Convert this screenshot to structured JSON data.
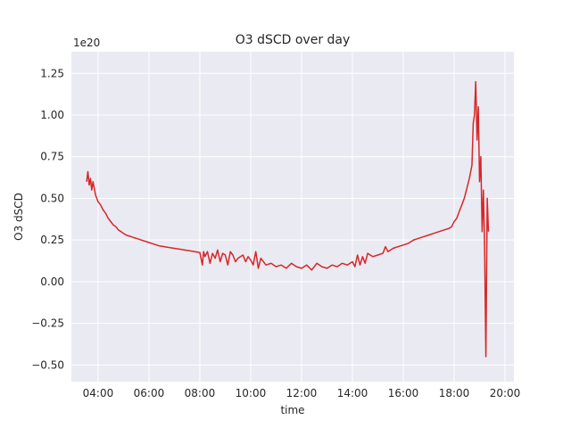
{
  "chart_data": {
    "type": "line",
    "title": "O3 dSCD over day",
    "xlabel": "time",
    "ylabel": "O3 dSCD",
    "y_offset_label": "1e20",
    "x_tick_labels": [
      "04:00",
      "06:00",
      "08:00",
      "10:00",
      "12:00",
      "14:00",
      "16:00",
      "18:00",
      "20:00"
    ],
    "x_ticks_hours": [
      4,
      6,
      8,
      10,
      12,
      14,
      16,
      18,
      20
    ],
    "y_ticks": [
      -0.5,
      -0.25,
      0.0,
      0.25,
      0.5,
      0.75,
      1.0,
      1.25
    ],
    "y_tick_labels": [
      "−0.50",
      "−0.25",
      "0.00",
      "0.25",
      "0.50",
      "0.75",
      "1.00",
      "1.25"
    ],
    "xlim_hours": [
      2.95,
      20.35
    ],
    "ylim": [
      -0.6,
      1.38
    ],
    "grid": true,
    "series": [
      {
        "color": "#d62728",
        "x_hours": [
          3.55,
          3.6,
          3.65,
          3.7,
          3.75,
          3.8,
          3.9,
          4.0,
          4.1,
          4.2,
          4.3,
          4.4,
          4.5,
          4.6,
          4.7,
          4.8,
          4.9,
          5.0,
          5.1,
          5.2,
          5.3,
          5.4,
          5.5,
          5.6,
          5.7,
          5.8,
          5.9,
          6.0,
          6.2,
          6.4,
          6.6,
          6.8,
          7.0,
          7.2,
          7.4,
          7.6,
          7.8,
          8.0,
          8.1,
          8.15,
          8.2,
          8.3,
          8.4,
          8.5,
          8.6,
          8.7,
          8.8,
          8.9,
          9.0,
          9.1,
          9.2,
          9.3,
          9.4,
          9.5,
          9.6,
          9.7,
          9.8,
          9.9,
          10.0,
          10.1,
          10.2,
          10.3,
          10.4,
          10.6,
          10.8,
          11.0,
          11.2,
          11.4,
          11.6,
          11.8,
          12.0,
          12.2,
          12.4,
          12.6,
          12.8,
          13.0,
          13.2,
          13.4,
          13.6,
          13.8,
          14.0,
          14.1,
          14.2,
          14.3,
          14.4,
          14.5,
          14.6,
          14.8,
          15.0,
          15.2,
          15.3,
          15.4,
          15.5,
          15.6,
          15.8,
          16.0,
          16.2,
          16.4,
          16.6,
          16.8,
          17.0,
          17.2,
          17.4,
          17.6,
          17.8,
          17.9,
          18.0,
          18.1,
          18.2,
          18.3,
          18.4,
          18.5,
          18.6,
          18.7,
          18.75,
          18.8,
          18.85,
          18.9,
          18.95,
          19.0,
          19.05,
          19.1,
          19.15,
          19.2,
          19.25,
          19.3,
          19.35
        ],
        "values": [
          0.6,
          0.66,
          0.58,
          0.62,
          0.55,
          0.6,
          0.52,
          0.48,
          0.46,
          0.43,
          0.41,
          0.38,
          0.36,
          0.34,
          0.33,
          0.31,
          0.3,
          0.29,
          0.28,
          0.275,
          0.27,
          0.265,
          0.26,
          0.255,
          0.25,
          0.245,
          0.24,
          0.235,
          0.225,
          0.215,
          0.21,
          0.205,
          0.2,
          0.195,
          0.19,
          0.185,
          0.18,
          0.175,
          0.1,
          0.18,
          0.15,
          0.18,
          0.11,
          0.17,
          0.14,
          0.19,
          0.12,
          0.17,
          0.16,
          0.1,
          0.18,
          0.16,
          0.12,
          0.14,
          0.15,
          0.16,
          0.12,
          0.15,
          0.13,
          0.1,
          0.18,
          0.08,
          0.14,
          0.1,
          0.11,
          0.09,
          0.1,
          0.08,
          0.11,
          0.09,
          0.08,
          0.1,
          0.07,
          0.11,
          0.09,
          0.08,
          0.1,
          0.09,
          0.11,
          0.1,
          0.12,
          0.09,
          0.16,
          0.1,
          0.15,
          0.11,
          0.17,
          0.15,
          0.16,
          0.17,
          0.21,
          0.18,
          0.19,
          0.2,
          0.21,
          0.22,
          0.23,
          0.25,
          0.26,
          0.27,
          0.28,
          0.29,
          0.3,
          0.31,
          0.32,
          0.33,
          0.36,
          0.38,
          0.42,
          0.46,
          0.5,
          0.56,
          0.62,
          0.7,
          0.95,
          1.0,
          1.2,
          0.85,
          1.05,
          0.6,
          0.75,
          0.3,
          0.55,
          0.2,
          -0.45,
          0.5,
          0.3
        ]
      }
    ]
  }
}
